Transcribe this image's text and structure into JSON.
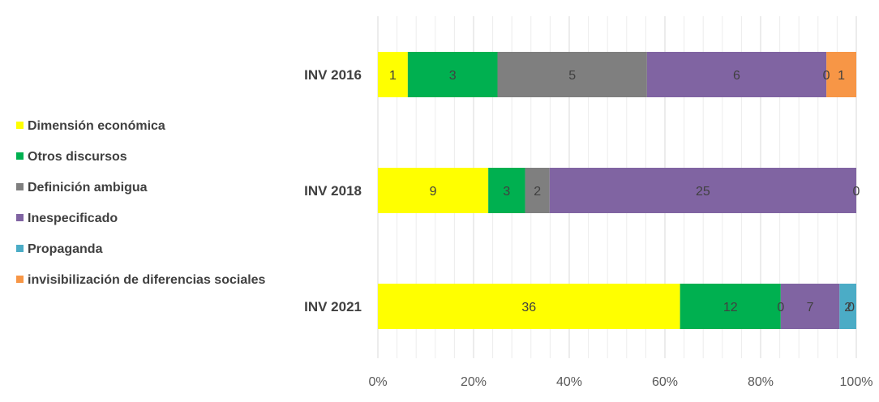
{
  "chart_data": {
    "type": "bar",
    "orientation": "horizontal",
    "stacked": "percent",
    "categories": [
      "INV 2016",
      "INV 2018",
      "INV 2021"
    ],
    "series": [
      {
        "name": "Dimensión económica",
        "color": "#FFFF00",
        "values": [
          1,
          9,
          36
        ]
      },
      {
        "name": "Otros discursos",
        "color": "#00B050",
        "values": [
          3,
          3,
          12
        ]
      },
      {
        "name": "Definición ambigua",
        "color": "#7F7F7F",
        "values": [
          5,
          2,
          0
        ]
      },
      {
        "name": "Inespecificado",
        "color": "#8064A2",
        "values": [
          6,
          25,
          7
        ]
      },
      {
        "name": "Propaganda",
        "color": "#4BACC6",
        "values": [
          0,
          0,
          2
        ]
      },
      {
        "name": "invisibilización de diferencias sociales",
        "color": "#F79646",
        "values": [
          1,
          0,
          0
        ]
      }
    ],
    "segment_labels": [
      [
        "1",
        "3",
        "5",
        "6",
        "0",
        "1"
      ],
      [
        "9",
        "3",
        "2",
        "25",
        "0",
        ""
      ],
      [
        "36",
        "12",
        "0",
        "7",
        "2",
        "0"
      ]
    ],
    "x_ticks": [
      "0%",
      "20%",
      "40%",
      "60%",
      "80%",
      "100%"
    ],
    "xlim": [
      0,
      100
    ],
    "grid": true,
    "legend_position": "left"
  }
}
